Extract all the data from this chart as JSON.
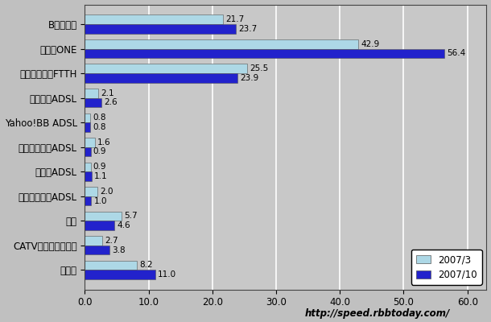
{
  "categories": [
    "Bフレッツ",
    "ひかりONE",
    "他キャリアのFTTH",
    "フレッツADSL",
    "Yahoo!BB ADSL",
    "イーアクセスADSL",
    "アッカADSL",
    "他キャリアのADSL",
    "無線",
    "CATVインターネット",
    "専用線"
  ],
  "values_2007_3": [
    21.7,
    42.9,
    25.5,
    2.1,
    0.8,
    1.6,
    0.9,
    2.0,
    5.7,
    2.7,
    8.2
  ],
  "values_2007_10": [
    23.7,
    56.4,
    23.9,
    2.6,
    0.8,
    0.9,
    1.1,
    1.0,
    4.6,
    3.8,
    11.0
  ],
  "color_2007_3": "#add8e6",
  "color_2007_10": "#2222cc",
  "bar_height": 0.38,
  "xlim": [
    0,
    63
  ],
  "xticks": [
    0.0,
    10.0,
    20.0,
    30.0,
    40.0,
    50.0,
    60.0
  ],
  "xtick_labels": [
    "0.0",
    "10.0",
    "20.0",
    "30.0",
    "40.0",
    "50.0",
    "60.0"
  ],
  "legend_labels": [
    "2007/3",
    "2007/10"
  ],
  "url_text": "http://speed.rbbtoday.com/",
  "background_color": "#c0c0c0",
  "plot_background_color": "#c8c8c8",
  "label_fontsize": 8.5,
  "value_fontsize": 7.5,
  "tick_fontsize": 8.5,
  "url_fontsize": 8.5,
  "grid_color": "#aaaaaa",
  "figwidth": 6.1,
  "figheight": 4.0,
  "dpi": 100
}
